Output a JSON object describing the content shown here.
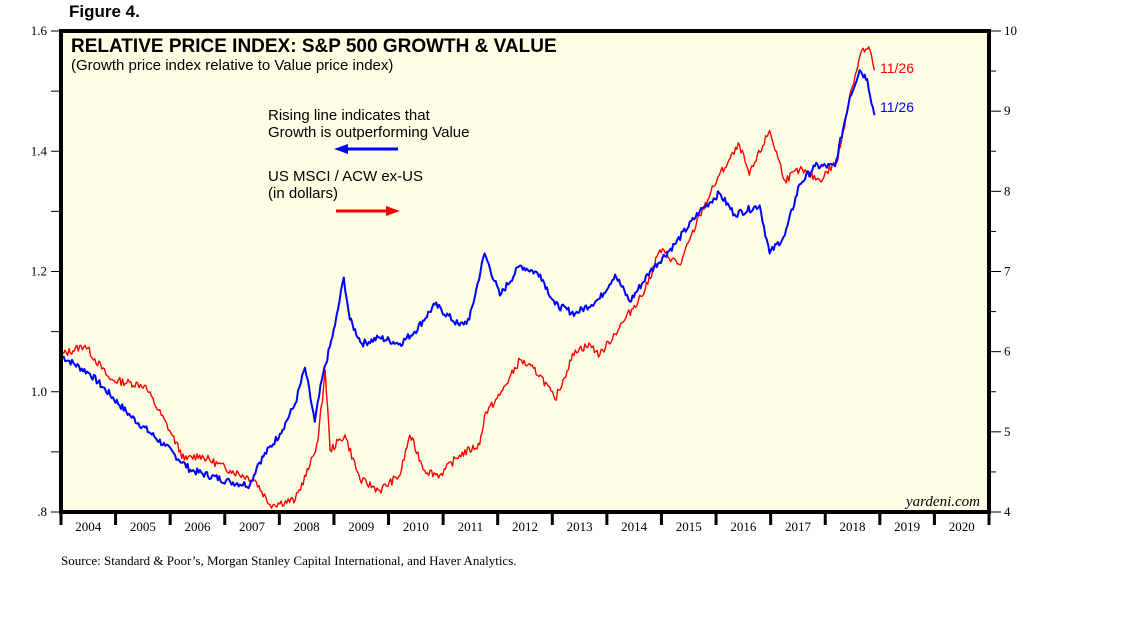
{
  "figure_label": "Figure 4.",
  "source": "Source: Standard & Poor’s, Morgan Stanley Capital International, and Haver Analytics.",
  "colors": {
    "background": "#FFFFE6",
    "growth_value": "#0000FF",
    "us_acw": "#FF0000",
    "frame": "#000000"
  },
  "chart_data": {
    "type": "line",
    "title": "RELATIVE PRICE INDEX: S&P 500 GROWTH & VALUE",
    "subtitle": "(Growth price index relative to Value price index)",
    "watermark": "yardeni.com",
    "xlabel": "",
    "x_ticks": [
      "2004",
      "2005",
      "2006",
      "2007",
      "2008",
      "2009",
      "2010",
      "2011",
      "2012",
      "2013",
      "2014",
      "2015",
      "2016",
      "2017",
      "2018",
      "2019",
      "2020"
    ],
    "xlim": [
      2004,
      2021
    ],
    "grid": false,
    "left_axis": {
      "ylim": [
        0.8,
        1.6
      ],
      "major_ticks": [
        ".8",
        "1.0",
        "1.2",
        "1.4",
        "1.6"
      ],
      "major_values": [
        0.8,
        1.0,
        1.2,
        1.4,
        1.6
      ],
      "minor_values": [
        0.9,
        1.1,
        1.3,
        1.5
      ]
    },
    "right_axis": {
      "ylim": [
        4,
        10
      ],
      "major_ticks": [
        "4",
        "5",
        "6",
        "7",
        "8",
        "9",
        "10"
      ],
      "major_values": [
        4,
        5,
        6,
        7,
        8,
        9,
        10
      ],
      "minor_values": [
        4.5,
        5.5,
        6.5,
        7.5,
        8.5,
        9.5
      ]
    },
    "annotations": [
      {
        "id": "blue-note",
        "lines": [
          "Rising line indicates that",
          "Growth is outperforming Value"
        ],
        "arrow": "left"
      },
      {
        "id": "red-note",
        "lines": [
          "US MSCI / ACW ex-US",
          "(in dollars)"
        ],
        "arrow": "right"
      }
    ],
    "series": [
      {
        "name": "S&P 500 Growth / Value relative price index",
        "axis": "left",
        "color": "#0000FF",
        "end_label": "11/26",
        "x": [
          2004.0,
          2004.53,
          2005.27,
          2005.91,
          2006.37,
          2007.1,
          2007.46,
          2007.61,
          2008.01,
          2008.29,
          2008.47,
          2008.65,
          2008.78,
          2009.02,
          2009.18,
          2009.29,
          2009.51,
          2009.84,
          2010.21,
          2010.48,
          2010.85,
          2011.3,
          2011.48,
          2011.76,
          2012.04,
          2012.41,
          2012.78,
          2013.05,
          2013.42,
          2013.87,
          2014.15,
          2014.42,
          2014.79,
          2015.24,
          2015.7,
          2016.06,
          2016.34,
          2016.8,
          2016.98,
          2017.26,
          2017.53,
          2017.81,
          2018.18,
          2018.45,
          2018.63,
          2018.77,
          2018.9
        ],
        "values": [
          1.06,
          1.03,
          0.96,
          0.91,
          0.87,
          0.85,
          0.845,
          0.88,
          0.93,
          0.98,
          1.04,
          0.95,
          1.02,
          1.11,
          1.19,
          1.12,
          1.08,
          1.09,
          1.08,
          1.1,
          1.145,
          1.11,
          1.12,
          1.23,
          1.16,
          1.21,
          1.195,
          1.145,
          1.13,
          1.155,
          1.195,
          1.15,
          1.2,
          1.245,
          1.3,
          1.33,
          1.295,
          1.31,
          1.23,
          1.26,
          1.345,
          1.375,
          1.375,
          1.49,
          1.535,
          1.52,
          1.46
        ]
      },
      {
        "name": "US MSCI / ACW ex-US (in dollars)",
        "axis": "right",
        "color": "#FF0000",
        "end_label": "11/26",
        "x": [
          2004.0,
          2004.44,
          2004.9,
          2005.53,
          2005.99,
          2006.26,
          2006.54,
          2007.1,
          2007.55,
          2007.83,
          2008.29,
          2008.56,
          2008.71,
          2008.84,
          2008.93,
          2009.2,
          2009.48,
          2009.84,
          2010.21,
          2010.39,
          2010.66,
          2010.94,
          2011.3,
          2011.67,
          2011.76,
          2012.04,
          2012.41,
          2012.78,
          2013.05,
          2013.42,
          2013.7,
          2013.87,
          2014.33,
          2014.7,
          2014.97,
          2015.34,
          2015.7,
          2016.06,
          2016.43,
          2016.61,
          2016.98,
          2017.26,
          2017.53,
          2017.9,
          2018.23,
          2018.45,
          2018.67,
          2018.82,
          2018.9
        ],
        "values": [
          5.96,
          6.08,
          5.65,
          5.58,
          5.02,
          4.65,
          4.71,
          4.52,
          4.4,
          4.09,
          4.15,
          4.58,
          4.9,
          5.77,
          4.77,
          4.96,
          4.4,
          4.27,
          4.46,
          4.96,
          4.52,
          4.46,
          4.71,
          4.84,
          5.21,
          5.46,
          5.9,
          5.71,
          5.4,
          6.02,
          6.08,
          5.96,
          6.4,
          6.77,
          7.27,
          7.08,
          7.7,
          8.2,
          8.58,
          8.2,
          8.76,
          8.14,
          8.27,
          8.14,
          8.39,
          9.2,
          9.76,
          9.76,
          9.51
        ]
      }
    ]
  }
}
